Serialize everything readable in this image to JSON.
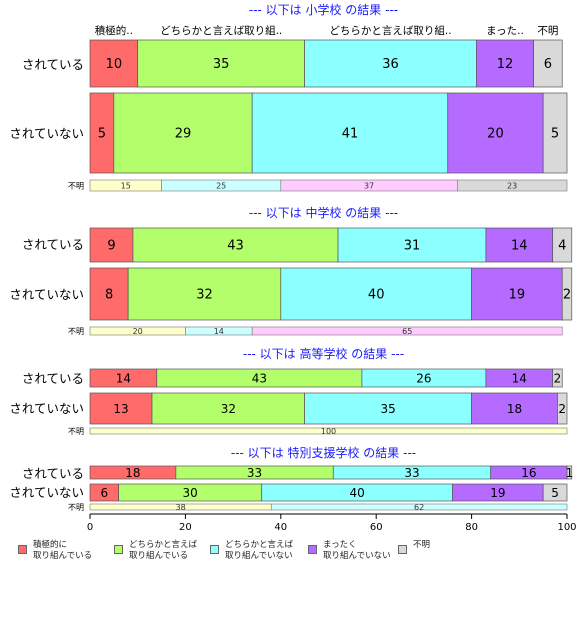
{
  "chart_data": {
    "type": "bar",
    "orientation": "horizontal",
    "stacked": true,
    "xlim": [
      0,
      100
    ],
    "x_ticks": [
      "0",
      "20",
      "40",
      "60",
      "80",
      "100"
    ],
    "categories": [
      "積極的に取り組んでいる",
      "どちらかと言えば取り組んでいる",
      "どちらかと言えば取り組んでいない",
      "まったく取り組んでいない",
      "不明"
    ],
    "colors": [
      "#ff6b6b",
      "#b3ff6b",
      "#8cffff",
      "#b56bff",
      "#d9d9d9"
    ],
    "na_colors": [
      "#ffffcc",
      "#ccffff",
      "#ffccff",
      "#d9d9d9"
    ],
    "header_labels": [
      "積極的..",
      "どちらかと言えば取り組..",
      "どちらかと言えば取り組..",
      "まった..",
      "不明"
    ],
    "na_label": "不明",
    "panels": [
      {
        "title": "--- 以下は 小学校 の結果 ---",
        "rows": [
          {
            "label": "されている",
            "values": [
              10,
              35,
              36,
              12,
              6
            ]
          },
          {
            "label": "されていない",
            "values": [
              5,
              29,
              41,
              20,
              5
            ]
          }
        ],
        "na_values": [
          15,
          25,
          37,
          23
        ]
      },
      {
        "title": "--- 以下は 中学校 の結果 ---",
        "rows": [
          {
            "label": "されている",
            "values": [
              9,
              43,
              31,
              14,
              4
            ]
          },
          {
            "label": "されていない",
            "values": [
              8,
              32,
              40,
              19,
              2
            ]
          }
        ],
        "na_values": [
          20,
          14,
          65
        ]
      },
      {
        "title": "--- 以下は 高等学校 の結果 ---",
        "rows": [
          {
            "label": "されている",
            "values": [
              14,
              43,
              26,
              14,
              2
            ]
          },
          {
            "label": "されていない",
            "values": [
              13,
              32,
              35,
              18,
              2
            ]
          }
        ],
        "na_values": [
          100
        ]
      },
      {
        "title": "--- 以下は 特別支援学校 の結果 ---",
        "rows": [
          {
            "label": "されている",
            "values": [
              18,
              33,
              33,
              16,
              1
            ]
          },
          {
            "label": "されていない",
            "values": [
              6,
              30,
              40,
              19,
              5
            ]
          }
        ],
        "na_values": [
          38,
          62
        ]
      }
    ],
    "legend": {
      "placement": "bottom",
      "entries": [
        {
          "label": "積極的に\n取り組んでいる",
          "color": "#ff6b6b"
        },
        {
          "label": "どちらかと言えば\n取り組んでいる",
          "color": "#b3ff6b"
        },
        {
          "label": "どちらかと言えば\n取り組んでいない",
          "color": "#8cffff"
        },
        {
          "label": "まったく\n取り組んでいない",
          "color": "#b56bff"
        },
        {
          "label": "不明",
          "color": "#d9d9d9"
        }
      ]
    }
  }
}
